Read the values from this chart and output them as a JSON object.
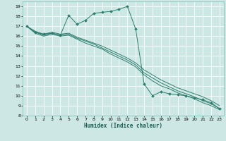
{
  "xlabel": "Humidex (Indice chaleur)",
  "bg_color": "#cde8e4",
  "grid_color": "#ffffff",
  "line_color": "#2e7d6e",
  "xlim": [
    -0.5,
    23.5
  ],
  "ylim": [
    8,
    19.5
  ],
  "xticks": [
    0,
    1,
    2,
    3,
    4,
    5,
    6,
    7,
    8,
    9,
    10,
    11,
    12,
    13,
    14,
    15,
    16,
    17,
    18,
    19,
    20,
    21,
    22,
    23
  ],
  "yticks": [
    8,
    9,
    10,
    11,
    12,
    13,
    14,
    15,
    16,
    17,
    18,
    19
  ],
  "series": [
    {
      "x": [
        0,
        1,
        2,
        3,
        4,
        5,
        6,
        7,
        8,
        9,
        10,
        11,
        12,
        13,
        14,
        15,
        16,
        17,
        18,
        19,
        20,
        21,
        22,
        23
      ],
      "y": [
        17.0,
        16.4,
        16.2,
        16.3,
        16.1,
        18.1,
        17.2,
        17.6,
        18.3,
        18.4,
        18.5,
        18.7,
        19.0,
        16.7,
        11.2,
        10.0,
        10.4,
        10.2,
        10.1,
        10.0,
        9.8,
        9.6,
        9.3,
        8.7
      ],
      "marker": true
    },
    {
      "x": [
        0,
        1,
        2,
        3,
        4,
        5,
        6,
        7,
        8,
        9,
        10,
        11,
        12,
        13,
        14,
        15,
        16,
        17,
        18,
        19,
        20,
        21,
        22,
        23
      ],
      "y": [
        17.0,
        16.5,
        16.2,
        16.4,
        16.2,
        16.3,
        15.9,
        15.6,
        15.3,
        15.0,
        14.6,
        14.2,
        13.8,
        13.3,
        12.6,
        12.1,
        11.6,
        11.2,
        10.8,
        10.5,
        10.2,
        9.9,
        9.5,
        9.0
      ],
      "marker": false
    },
    {
      "x": [
        0,
        1,
        2,
        3,
        4,
        5,
        6,
        7,
        8,
        9,
        10,
        11,
        12,
        13,
        14,
        15,
        16,
        17,
        18,
        19,
        20,
        21,
        22,
        23
      ],
      "y": [
        17.0,
        16.4,
        16.1,
        16.3,
        16.1,
        16.2,
        15.8,
        15.5,
        15.2,
        14.8,
        14.4,
        14.0,
        13.6,
        13.1,
        12.3,
        11.8,
        11.3,
        10.9,
        10.5,
        10.2,
        9.9,
        9.5,
        9.2,
        8.7
      ],
      "marker": false
    },
    {
      "x": [
        0,
        1,
        2,
        3,
        4,
        5,
        6,
        7,
        8,
        9,
        10,
        11,
        12,
        13,
        14,
        15,
        16,
        17,
        18,
        19,
        20,
        21,
        22,
        23
      ],
      "y": [
        17.0,
        16.3,
        16.0,
        16.2,
        16.0,
        16.1,
        15.7,
        15.3,
        15.0,
        14.7,
        14.2,
        13.8,
        13.4,
        12.9,
        12.1,
        11.5,
        11.0,
        10.7,
        10.3,
        10.0,
        9.7,
        9.3,
        9.0,
        8.6
      ],
      "marker": false
    }
  ]
}
